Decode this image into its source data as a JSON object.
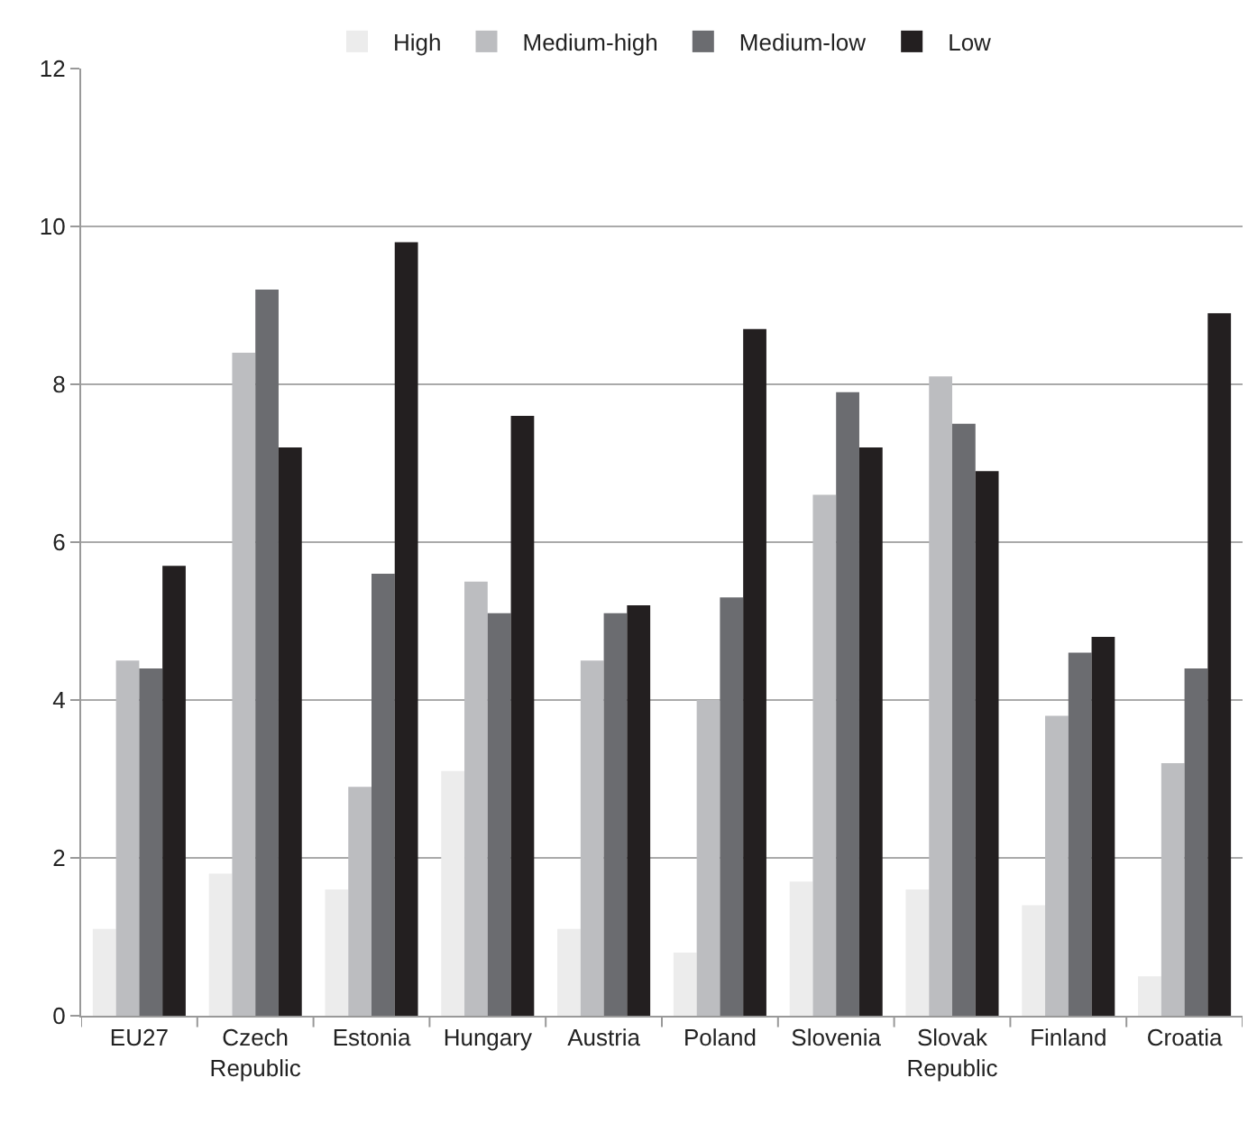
{
  "chart_data": {
    "type": "bar",
    "categories": [
      "EU27",
      "Czech Republic",
      "Estonia",
      "Hungary",
      "Austria",
      "Poland",
      "Slovenia",
      "Slovak Republic",
      "Finland",
      "Croatia"
    ],
    "series": [
      {
        "name": "High",
        "color": "#ececec",
        "values": [
          1.1,
          1.8,
          1.6,
          3.1,
          1.1,
          0.8,
          1.7,
          1.6,
          1.4,
          0.5
        ]
      },
      {
        "name": "Medium-high",
        "color": "#bcbdc0",
        "values": [
          4.5,
          8.4,
          2.9,
          5.5,
          4.5,
          4.0,
          6.6,
          8.1,
          3.8,
          3.2
        ]
      },
      {
        "name": "Medium-low",
        "color": "#6b6c70",
        "values": [
          4.4,
          9.2,
          5.6,
          5.1,
          5.1,
          5.3,
          7.9,
          7.5,
          4.6,
          4.4
        ]
      },
      {
        "name": "Low",
        "color": "#231f20",
        "values": [
          5.7,
          7.2,
          9.8,
          7.6,
          5.2,
          8.7,
          7.2,
          6.9,
          4.8,
          8.9
        ]
      }
    ],
    "ylim": [
      0,
      12
    ],
    "yticks": [
      0,
      2,
      4,
      6,
      8,
      10,
      12
    ],
    "grid": "y",
    "legend": "top"
  }
}
